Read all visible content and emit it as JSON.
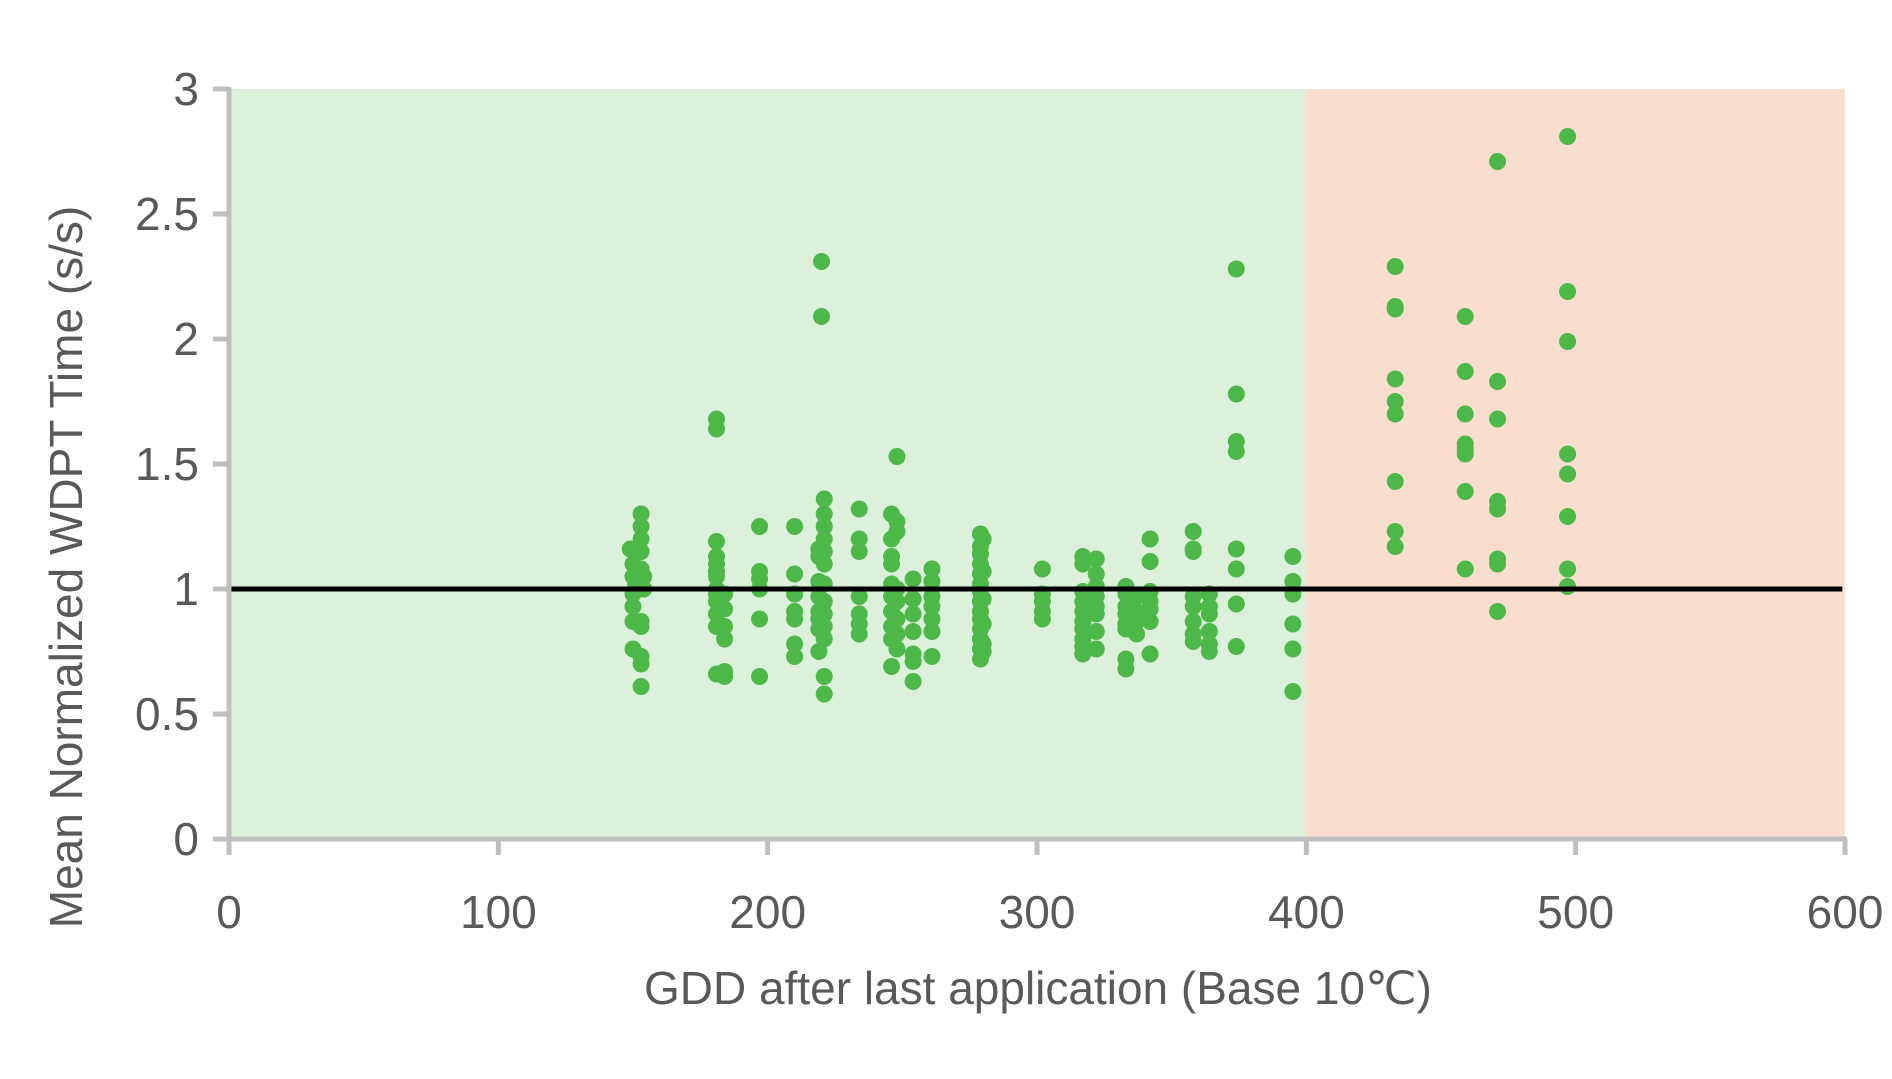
{
  "chart_data": {
    "type": "scatter",
    "title": "",
    "xlabel": "GDD after last application (Base 10℃)",
    "ylabel": "Mean Normalized WDPT Time (s/s)",
    "xlim": [
      0,
      600
    ],
    "ylim": [
      0,
      3
    ],
    "xticks": [
      0,
      100,
      200,
      300,
      400,
      500,
      600
    ],
    "xtick_labels": [
      "0",
      "100",
      "200",
      "300",
      "400",
      "500",
      "600"
    ],
    "yticks": [
      0,
      0.5,
      1,
      1.5,
      2,
      2.5,
      3
    ],
    "ytick_labels": [
      "0",
      "0.5",
      "1",
      "1.5",
      "2",
      "2.5",
      "3"
    ],
    "grid": false,
    "legend": "none",
    "colors": {
      "point": "#4cb848",
      "acceptable_region": "#dcf0dc",
      "excess_region": "#f9decd",
      "reference_line": "#000000",
      "axis": "#bfbfbf",
      "text": "#595959"
    },
    "regions": [
      {
        "x_start": 0,
        "x_end": 400,
        "color": "#dcf0dc"
      },
      {
        "x_start": 400,
        "x_end": 600,
        "color": "#f9decd"
      }
    ],
    "reference_line": {
      "y": 1,
      "x_start": 0,
      "x_end": 599
    },
    "series": [
      {
        "points": [
          [
            149,
            1.16
          ],
          [
            150,
            1.1
          ],
          [
            150,
            1.05
          ],
          [
            151,
            1.02
          ],
          [
            150,
            0.98
          ],
          [
            150,
            0.93
          ],
          [
            150,
            0.87
          ],
          [
            150,
            0.76
          ],
          [
            153,
            1.3
          ],
          [
            153,
            1.25
          ],
          [
            153,
            1.2
          ],
          [
            153,
            1.15
          ],
          [
            153,
            1.08
          ],
          [
            154,
            1.05
          ],
          [
            154,
            1.0
          ],
          [
            153,
            0.87
          ],
          [
            153,
            0.85
          ],
          [
            153,
            0.73
          ],
          [
            153,
            0.7
          ],
          [
            153,
            0.61
          ],
          [
            181,
            1.68
          ],
          [
            181,
            1.64
          ],
          [
            181,
            1.19
          ],
          [
            181,
            1.13
          ],
          [
            181,
            1.1
          ],
          [
            181,
            1.07
          ],
          [
            181,
            1.05
          ],
          [
            181,
            1.0
          ],
          [
            181,
            0.98
          ],
          [
            181,
            0.95
          ],
          [
            181,
            0.9
          ],
          [
            181,
            0.85
          ],
          [
            181,
            0.66
          ],
          [
            184,
            0.98
          ],
          [
            184,
            0.92
          ],
          [
            184,
            0.85
          ],
          [
            184,
            0.8
          ],
          [
            184,
            0.67
          ],
          [
            184,
            0.65
          ],
          [
            197,
            1.25
          ],
          [
            197,
            1.07
          ],
          [
            197,
            1.04
          ],
          [
            197,
            1.0
          ],
          [
            197,
            0.88
          ],
          [
            197,
            0.65
          ],
          [
            210,
            1.25
          ],
          [
            210,
            1.06
          ],
          [
            210,
            0.98
          ],
          [
            210,
            0.91
          ],
          [
            210,
            0.88
          ],
          [
            210,
            0.78
          ],
          [
            210,
            0.73
          ],
          [
            220,
            2.31
          ],
          [
            220,
            2.09
          ],
          [
            219,
            1.16
          ],
          [
            219,
            1.13
          ],
          [
            219,
            1.03
          ],
          [
            219,
            0.97
          ],
          [
            219,
            0.91
          ],
          [
            219,
            0.88
          ],
          [
            219,
            0.84
          ],
          [
            219,
            0.75
          ],
          [
            221,
            1.36
          ],
          [
            221,
            1.3
          ],
          [
            221,
            1.25
          ],
          [
            221,
            1.2
          ],
          [
            221,
            1.15
          ],
          [
            221,
            1.1
          ],
          [
            221,
            1.02
          ],
          [
            221,
            0.95
          ],
          [
            221,
            0.9
          ],
          [
            221,
            0.85
          ],
          [
            221,
            0.8
          ],
          [
            221,
            0.65
          ],
          [
            221,
            0.58
          ],
          [
            234,
            1.32
          ],
          [
            234,
            1.2
          ],
          [
            234,
            1.15
          ],
          [
            234,
            0.97
          ],
          [
            234,
            0.9
          ],
          [
            234,
            0.86
          ],
          [
            234,
            0.82
          ],
          [
            246,
            1.3
          ],
          [
            246,
            1.2
          ],
          [
            246,
            1.13
          ],
          [
            246,
            1.1
          ],
          [
            246,
            1.02
          ],
          [
            246,
            0.97
          ],
          [
            246,
            0.91
          ],
          [
            246,
            0.85
          ],
          [
            246,
            0.8
          ],
          [
            246,
            0.69
          ],
          [
            248,
            1.53
          ],
          [
            248,
            1.27
          ],
          [
            248,
            1.23
          ],
          [
            248,
            1.0
          ],
          [
            248,
            0.95
          ],
          [
            248,
            0.88
          ],
          [
            248,
            0.82
          ],
          [
            248,
            0.76
          ],
          [
            254,
            1.04
          ],
          [
            254,
            0.96
          ],
          [
            254,
            0.9
          ],
          [
            254,
            0.83
          ],
          [
            254,
            0.74
          ],
          [
            254,
            0.71
          ],
          [
            254,
            0.63
          ],
          [
            261,
            1.08
          ],
          [
            261,
            1.03
          ],
          [
            261,
            0.97
          ],
          [
            261,
            0.93
          ],
          [
            261,
            0.88
          ],
          [
            261,
            0.83
          ],
          [
            261,
            0.73
          ],
          [
            279,
            1.22
          ],
          [
            279,
            1.17
          ],
          [
            279,
            1.14
          ],
          [
            279,
            1.1
          ],
          [
            279,
            1.06
          ],
          [
            279,
            1.02
          ],
          [
            279,
            0.99
          ],
          [
            279,
            0.95
          ],
          [
            279,
            0.91
          ],
          [
            279,
            0.88
          ],
          [
            279,
            0.84
          ],
          [
            279,
            0.8
          ],
          [
            279,
            0.76
          ],
          [
            279,
            0.72
          ],
          [
            280,
            1.2
          ],
          [
            280,
            1.07
          ],
          [
            280,
            0.96
          ],
          [
            280,
            0.86
          ],
          [
            280,
            0.78
          ],
          [
            280,
            0.75
          ],
          [
            302,
            1.08
          ],
          [
            302,
            0.98
          ],
          [
            302,
            0.95
          ],
          [
            302,
            0.91
          ],
          [
            302,
            0.88
          ],
          [
            317,
            1.13
          ],
          [
            317,
            1.1
          ],
          [
            317,
            0.99
          ],
          [
            317,
            0.95
          ],
          [
            317,
            0.91
          ],
          [
            317,
            0.87
          ],
          [
            317,
            0.84
          ],
          [
            317,
            0.8
          ],
          [
            317,
            0.77
          ],
          [
            317,
            0.74
          ],
          [
            322,
            1.12
          ],
          [
            322,
            1.06
          ],
          [
            322,
            1.01
          ],
          [
            322,
            0.97
          ],
          [
            322,
            0.93
          ],
          [
            322,
            0.9
          ],
          [
            322,
            0.83
          ],
          [
            322,
            0.76
          ],
          [
            333,
            1.01
          ],
          [
            333,
            0.98
          ],
          [
            333,
            0.93
          ],
          [
            333,
            0.9
          ],
          [
            333,
            0.86
          ],
          [
            333,
            0.84
          ],
          [
            333,
            0.72
          ],
          [
            333,
            0.68
          ],
          [
            337,
            0.97
          ],
          [
            337,
            0.91
          ],
          [
            337,
            0.87
          ],
          [
            337,
            0.82
          ],
          [
            342,
            1.2
          ],
          [
            342,
            1.11
          ],
          [
            342,
            0.99
          ],
          [
            342,
            0.95
          ],
          [
            342,
            0.92
          ],
          [
            342,
            0.87
          ],
          [
            342,
            0.74
          ],
          [
            358,
            1.23
          ],
          [
            358,
            1.16
          ],
          [
            358,
            1.15
          ],
          [
            358,
            0.97
          ],
          [
            358,
            0.93
          ],
          [
            358,
            0.87
          ],
          [
            358,
            0.82
          ],
          [
            358,
            0.79
          ],
          [
            364,
            0.98
          ],
          [
            364,
            0.93
          ],
          [
            364,
            0.9
          ],
          [
            364,
            0.83
          ],
          [
            364,
            0.78
          ],
          [
            364,
            0.75
          ],
          [
            374,
            2.28
          ],
          [
            374,
            1.78
          ],
          [
            374,
            1.59
          ],
          [
            374,
            1.55
          ],
          [
            374,
            1.16
          ],
          [
            374,
            1.08
          ],
          [
            374,
            0.94
          ],
          [
            374,
            0.77
          ],
          [
            395,
            1.13
          ],
          [
            395,
            1.03
          ],
          [
            395,
            0.98
          ],
          [
            395,
            0.86
          ],
          [
            395,
            0.76
          ],
          [
            395,
            0.59
          ],
          [
            433,
            2.29
          ],
          [
            433,
            2.13
          ],
          [
            433,
            2.12
          ],
          [
            433,
            1.84
          ],
          [
            433,
            1.75
          ],
          [
            433,
            1.7
          ],
          [
            433,
            1.43
          ],
          [
            433,
            1.23
          ],
          [
            433,
            1.17
          ],
          [
            459,
            2.09
          ],
          [
            459,
            1.87
          ],
          [
            459,
            1.7
          ],
          [
            459,
            1.58
          ],
          [
            459,
            1.56
          ],
          [
            459,
            1.54
          ],
          [
            459,
            1.39
          ],
          [
            459,
            1.08
          ],
          [
            471,
            2.71
          ],
          [
            471,
            1.83
          ],
          [
            471,
            1.68
          ],
          [
            471,
            1.35
          ],
          [
            471,
            1.32
          ],
          [
            471,
            1.12
          ],
          [
            471,
            1.1
          ],
          [
            471,
            0.91
          ],
          [
            497,
            2.81
          ],
          [
            497,
            2.19
          ],
          [
            497,
            1.99
          ],
          [
            497,
            1.54
          ],
          [
            497,
            1.46
          ],
          [
            497,
            1.29
          ],
          [
            497,
            1.08
          ],
          [
            497,
            1.01
          ]
        ]
      }
    ]
  }
}
